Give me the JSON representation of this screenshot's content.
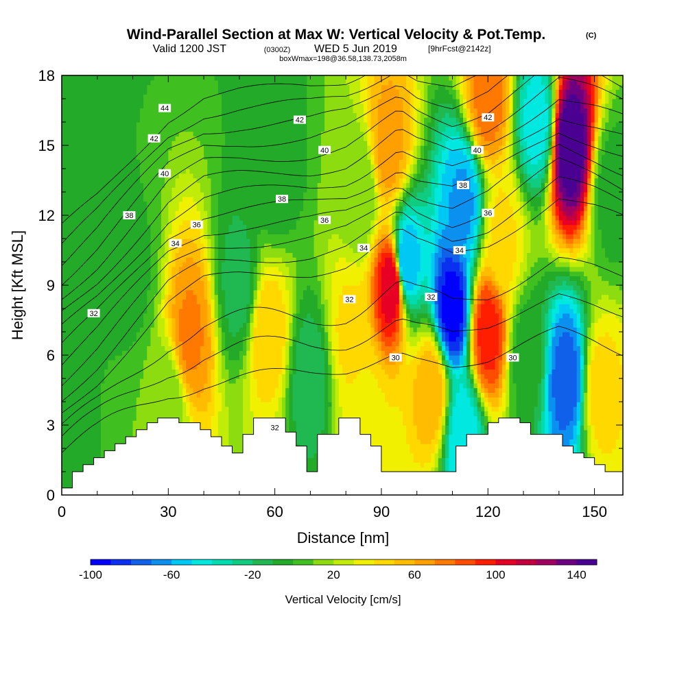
{
  "header": {
    "title": "Wind-Parallel Section at Max W: Vertical Velocity & Pot.Temp.",
    "copyright": "(C)",
    "valid_prefix": "Valid 1200 JST",
    "valid_utc": "(0300Z)",
    "valid_date": "WED 5 Jun 2019",
    "forecast": "[9hrFcst@2142z]",
    "boxwmax": "boxWmax=198@36.58,138.73,2058m"
  },
  "chart_data": {
    "type": "heatmap",
    "title": "Wind-Parallel Section at Max W: Vertical Velocity & Pot.Temp.",
    "xlabel": "Distance [nm]",
    "ylabel": "Height [Kft MSL]",
    "xlim": [
      0,
      158
    ],
    "ylim": [
      0,
      18
    ],
    "x_ticks": [
      0,
      30,
      60,
      90,
      120,
      150
    ],
    "y_ticks": [
      0,
      3,
      6,
      9,
      12,
      15,
      18
    ],
    "grid": false,
    "colorbar": {
      "label": "Vertical Velocity [cm/s]",
      "ticks": [
        -100,
        -60,
        -20,
        20,
        60,
        100,
        140
      ],
      "min": -100,
      "max": 150,
      "step": 10,
      "colors": [
        "#0000ff",
        "#0a30f0",
        "#1060ea",
        "#0c90f0",
        "#00c8f5",
        "#00e8e0",
        "#00dcb0",
        "#10cc80",
        "#20b850",
        "#22aa28",
        "#40c020",
        "#8cdc10",
        "#c0ec08",
        "#f0f000",
        "#ffd800",
        "#ffbc00",
        "#ffa000",
        "#ff7800",
        "#ff4c00",
        "#ff1e00",
        "#e80024",
        "#c4003c",
        "#a00060",
        "#6c0080",
        "#4a0090"
      ]
    },
    "velocity_field": {
      "background_value": -10,
      "cells": [
        {
          "x": 10,
          "z": 15,
          "value": 0
        },
        {
          "x": 60,
          "z": 14,
          "value": -8
        },
        {
          "x": 20,
          "z": 9.5,
          "value": -2
        },
        {
          "x": 36,
          "z": 6.8,
          "value": 72
        },
        {
          "x": 30,
          "z": 4,
          "value": 12
        },
        {
          "x": 58,
          "z": 7,
          "value": 48
        },
        {
          "x": 50,
          "z": 9,
          "value": -14
        },
        {
          "x": 70,
          "z": 5,
          "value": -16
        },
        {
          "x": 81,
          "z": 7,
          "value": 42
        },
        {
          "x": 84,
          "z": 13,
          "value": 10
        },
        {
          "x": 93,
          "z": 9,
          "value": 110
        },
        {
          "x": 92,
          "z": 15,
          "value": 65
        },
        {
          "x": 86,
          "z": 3,
          "value": 38
        },
        {
          "x": 97,
          "z": 10,
          "value": -60
        },
        {
          "x": 104,
          "z": 4.5,
          "value": 58
        },
        {
          "x": 110,
          "z": 8,
          "value": -95
        },
        {
          "x": 113,
          "z": 12.5,
          "value": -62
        },
        {
          "x": 113,
          "z": 2.5,
          "value": -48
        },
        {
          "x": 120,
          "z": 7,
          "value": 95
        },
        {
          "x": 120,
          "z": 17,
          "value": 75
        },
        {
          "x": 124,
          "z": 11,
          "value": 42
        },
        {
          "x": 134,
          "z": 16,
          "value": -45
        },
        {
          "x": 131,
          "z": 6,
          "value": -5
        },
        {
          "x": 142,
          "z": 5,
          "value": -75
        },
        {
          "x": 143,
          "z": 15,
          "value": 150
        },
        {
          "x": 152,
          "z": 4.5,
          "value": 45
        },
        {
          "x": 155,
          "z": 13,
          "value": -5
        }
      ]
    },
    "terrain_kft": [
      [
        0,
        0.3
      ],
      [
        3,
        1.0
      ],
      [
        6,
        1.3
      ],
      [
        9,
        1.6
      ],
      [
        12,
        1.9
      ],
      [
        15,
        2.2
      ],
      [
        18,
        2.5
      ],
      [
        21,
        2.8
      ],
      [
        24,
        3.1
      ],
      [
        27,
        3.3
      ],
      [
        30,
        3.3
      ],
      [
        33,
        3.1
      ],
      [
        36,
        3.1
      ],
      [
        39,
        2.8
      ],
      [
        42,
        2.5
      ],
      [
        45,
        2.1
      ],
      [
        48,
        1.8
      ],
      [
        51,
        2.6
      ],
      [
        54,
        3.3
      ],
      [
        57,
        3.3
      ],
      [
        60,
        3.3
      ],
      [
        63,
        2.7
      ],
      [
        66,
        2.1
      ],
      [
        69,
        1.0
      ],
      [
        72,
        2.6
      ],
      [
        75,
        2.6
      ],
      [
        78,
        3.3
      ],
      [
        81,
        3.3
      ],
      [
        84,
        2.6
      ],
      [
        87,
        2.1
      ],
      [
        90,
        1.0
      ],
      [
        93,
        1.0
      ],
      [
        96,
        1.0
      ],
      [
        99,
        1.0
      ],
      [
        102,
        1.0
      ],
      [
        105,
        1.0
      ],
      [
        108,
        1.0
      ],
      [
        111,
        2.1
      ],
      [
        114,
        2.6
      ],
      [
        117,
        2.6
      ],
      [
        120,
        3.1
      ],
      [
        123,
        3.3
      ],
      [
        126,
        3.3
      ],
      [
        129,
        3.1
      ],
      [
        132,
        2.6
      ],
      [
        135,
        2.6
      ],
      [
        138,
        2.6
      ],
      [
        141,
        2.1
      ],
      [
        144,
        1.8
      ],
      [
        147,
        1.6
      ],
      [
        150,
        1.3
      ],
      [
        153,
        1.0
      ],
      [
        156,
        1.0
      ],
      [
        158,
        1.0
      ]
    ],
    "theta_contour_levels_C": [
      30,
      31,
      32,
      33,
      34,
      35,
      36,
      37,
      38,
      39,
      40,
      41,
      42,
      43,
      44
    ],
    "contour_labels": [
      {
        "text": "44",
        "x": 29,
        "z": 16.6
      },
      {
        "text": "42",
        "x": 26,
        "z": 15.3
      },
      {
        "text": "40",
        "x": 29,
        "z": 13.8
      },
      {
        "text": "38",
        "x": 19,
        "z": 12.0
      },
      {
        "text": "36",
        "x": 38,
        "z": 11.6
      },
      {
        "text": "34",
        "x": 32,
        "z": 10.8
      },
      {
        "text": "32",
        "x": 9,
        "z": 7.8
      },
      {
        "text": "42",
        "x": 67,
        "z": 16.1
      },
      {
        "text": "40",
        "x": 74,
        "z": 14.8
      },
      {
        "text": "38",
        "x": 62,
        "z": 12.7
      },
      {
        "text": "36",
        "x": 74,
        "z": 11.8
      },
      {
        "text": "34",
        "x": 85,
        "z": 10.6
      },
      {
        "text": "32",
        "x": 81,
        "z": 8.4
      },
      {
        "text": "30",
        "x": 94,
        "z": 5.9
      },
      {
        "text": "32",
        "x": 60,
        "z": 2.9
      },
      {
        "text": "32",
        "x": 104,
        "z": 8.5
      },
      {
        "text": "42",
        "x": 120,
        "z": 16.2
      },
      {
        "text": "40",
        "x": 117,
        "z": 14.8
      },
      {
        "text": "38",
        "x": 113,
        "z": 13.3
      },
      {
        "text": "36",
        "x": 120,
        "z": 12.1
      },
      {
        "text": "34",
        "x": 112,
        "z": 10.5
      },
      {
        "text": "30",
        "x": 127,
        "z": 5.9
      }
    ]
  }
}
